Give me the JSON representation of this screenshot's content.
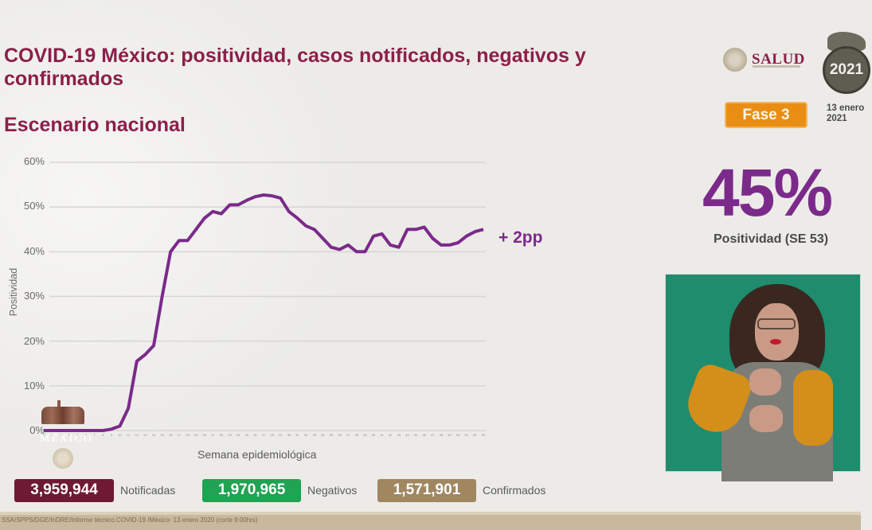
{
  "header": {
    "title": "COVID-19 México: positividad, casos notificados, negativos y confirmados",
    "subtitle": "Escenario nacional"
  },
  "branding": {
    "salud_logo_text": "SALUD",
    "mexico_2021_logo": "2021",
    "phase_badge": "Fase 3",
    "date": "13 enero\n2021",
    "watermark_text": "MÉXICO"
  },
  "kpi": {
    "value": "45%",
    "label": "Positividad (SE 53)"
  },
  "chart_data": {
    "type": "line",
    "title": "Escenario nacional",
    "xlabel": "Semana epidemiológica",
    "ylabel": "Positividad",
    "ylim": [
      0,
      60
    ],
    "y_ticks": [
      "0%",
      "10%",
      "20%",
      "30%",
      "40%",
      "50%",
      "60%"
    ],
    "grid": true,
    "annotation": "+ 2pp",
    "x": [
      1,
      2,
      3,
      4,
      5,
      6,
      7,
      8,
      9,
      10,
      11,
      12,
      13,
      14,
      15,
      16,
      17,
      18,
      19,
      20,
      21,
      22,
      23,
      24,
      25,
      26,
      27,
      28,
      29,
      30,
      31,
      32,
      33,
      34,
      35,
      36,
      37,
      38,
      39,
      40,
      41,
      42,
      43,
      44,
      45,
      46,
      47,
      48,
      49,
      50,
      51,
      52,
      53
    ],
    "series": [
      {
        "name": "Positividad",
        "color": "#7b2a8a",
        "values": [
          0,
          0,
          0,
          0,
          0,
          0,
          0,
          0,
          0.3,
          1,
          5,
          15.5,
          17,
          19,
          30,
          40,
          42.5,
          42.5,
          45,
          47.5,
          49,
          48.5,
          50.5,
          50.5,
          51.5,
          52.3,
          52.7,
          52.5,
          52,
          49,
          47.5,
          45.8,
          45,
          43,
          41,
          40.5,
          41.5,
          40,
          40,
          43.5,
          44,
          41.5,
          41,
          45,
          45,
          45.5,
          43,
          41.5,
          41.5,
          42,
          43.5,
          44.5,
          45
        ]
      }
    ]
  },
  "stats": [
    {
      "value": "3,959,944",
      "label": "Notificadas",
      "color": "#6e1a33"
    },
    {
      "value": "1,970,965",
      "label": "Negativos",
      "color": "#20a352"
    },
    {
      "value": "1,571,901",
      "label": "Confirmados",
      "color": "#a08760"
    }
  ],
  "footer": {
    "source": "SSA/SPPS/DGE/InDRE/Informe técnico.COVID-19 /México- 13 enero 2020 (corte 9:00hrs)"
  },
  "video": {
    "description": "sign-language-interpreter"
  }
}
